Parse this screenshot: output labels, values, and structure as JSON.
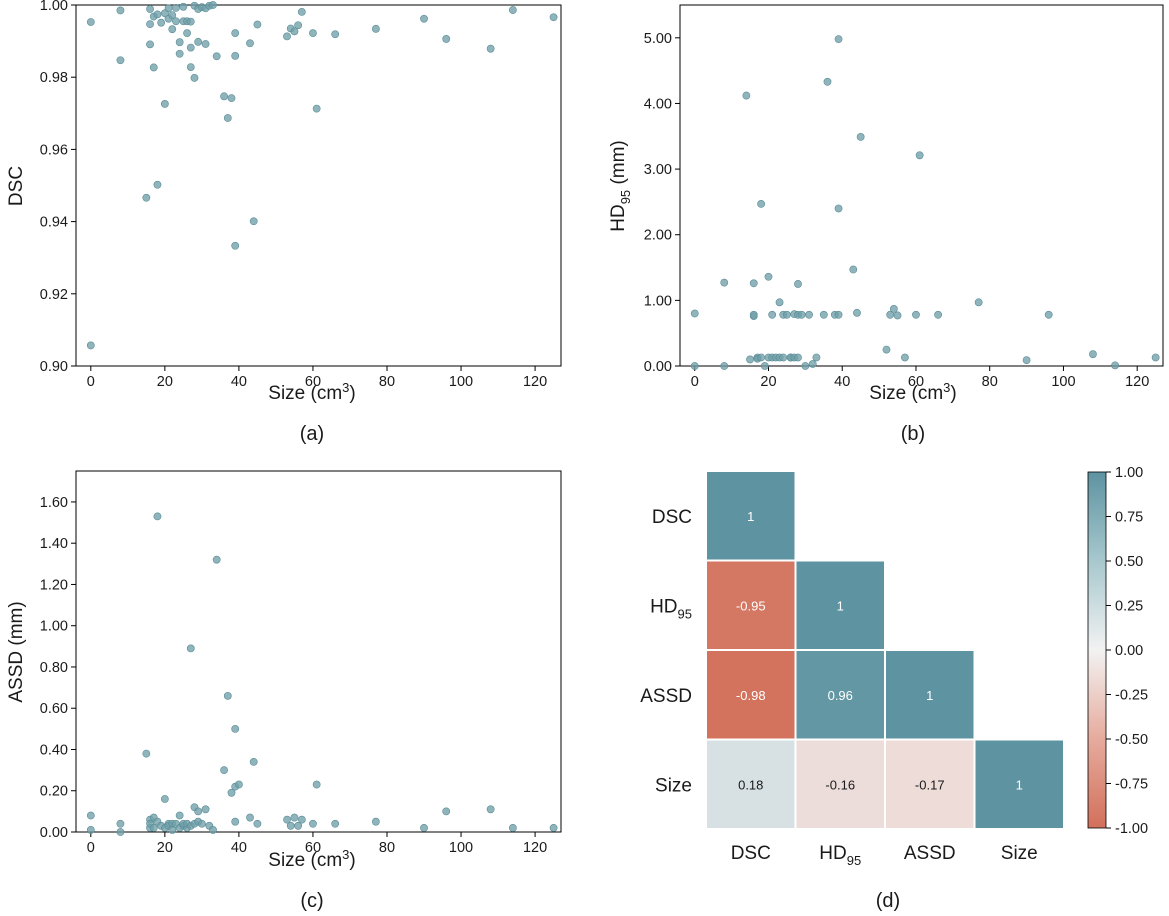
{
  "colors": {
    "point": "#6f9fa8",
    "point_edge": "#5a8c96",
    "axis": "#000000",
    "cmap_neg": "#d2705b",
    "cmap_mid": "#f2f2f2",
    "cmap_pos": "#5e93a1"
  },
  "chart_data": [
    {
      "id": "a",
      "type": "scatter",
      "panel_label": "(a)",
      "xlabel": "Size (cm",
      "xlabel_sup": "3",
      "xlabel_end": ")",
      "ylabel": "DSC",
      "xlim": [
        -4,
        127
      ],
      "ylim": [
        0.9,
        1.0
      ],
      "xticks": [
        0,
        20,
        40,
        60,
        80,
        100,
        120
      ],
      "xtick_labels": [
        "0",
        "20",
        "40",
        "60",
        "80",
        "100",
        "120"
      ],
      "yticks": [
        0.9,
        0.92,
        0.94,
        0.96,
        0.98,
        1.0
      ],
      "ytick_labels": [
        "0.90",
        "0.92",
        "0.94",
        "0.96",
        "0.98",
        "1.00"
      ],
      "x": [
        0,
        0,
        8,
        8,
        15,
        16,
        16,
        16,
        17,
        17,
        18,
        18,
        19,
        20,
        20,
        21,
        21,
        22,
        22,
        23,
        23,
        24,
        24,
        25,
        25,
        26,
        26,
        27,
        27,
        27,
        28,
        28,
        29,
        29,
        30,
        31,
        31,
        32,
        33,
        34,
        36,
        37,
        38,
        39,
        39,
        39,
        43,
        44,
        45,
        53,
        54,
        55,
        56,
        57,
        60,
        61,
        66,
        77,
        90,
        96,
        108,
        114,
        125
      ],
      "y": [
        0.9953,
        0.9057,
        0.9985,
        0.9847,
        0.9466,
        0.9947,
        0.9989,
        0.9891,
        0.9827,
        0.9968,
        0.9502,
        0.9974,
        0.9951,
        0.9726,
        0.9977,
        0.9962,
        0.9991,
        0.9972,
        0.9933,
        0.9992,
        0.9955,
        0.9897,
        0.9865,
        0.9955,
        0.9995,
        0.9955,
        0.9922,
        0.9954,
        0.9828,
        0.9882,
        0.9998,
        0.9798,
        0.9898,
        0.9989,
        0.9994,
        0.9991,
        0.9892,
        0.9998,
        1.0,
        0.9858,
        0.9747,
        0.9687,
        0.9742,
        0.9922,
        0.9859,
        0.9333,
        0.9894,
        0.9401,
        0.9946,
        0.9913,
        0.9935,
        0.9927,
        0.9944,
        0.9981,
        0.9922,
        0.9713,
        0.9919,
        0.9934,
        0.9962,
        0.9906,
        0.9879,
        0.9986,
        0.9966
      ]
    },
    {
      "id": "b",
      "type": "scatter",
      "panel_label": "(b)",
      "xlabel": "Size (cm",
      "xlabel_sup": "3",
      "xlabel_end": ")",
      "ylabel": "HD",
      "ylabel_sub": "95",
      "ylabel_end": " (mm)",
      "xlim": [
        -4,
        127
      ],
      "ylim": [
        0,
        5.5
      ],
      "xticks": [
        0,
        20,
        40,
        60,
        80,
        100,
        120
      ],
      "xtick_labels": [
        "0",
        "20",
        "40",
        "60",
        "80",
        "100",
        "120"
      ],
      "yticks": [
        0,
        1,
        2,
        3,
        4,
        5
      ],
      "ytick_labels": [
        "0.00",
        "1.00",
        "2.00",
        "3.00",
        "4.00",
        "5.00"
      ],
      "x": [
        0,
        0,
        8,
        8,
        14,
        15,
        16,
        16,
        16,
        17,
        17,
        18,
        18,
        19,
        20,
        20,
        21,
        21,
        22,
        23,
        23,
        24,
        24,
        25,
        26,
        26,
        27,
        27,
        28,
        28,
        28,
        29,
        30,
        31,
        32,
        33,
        35,
        36,
        38,
        39,
        39,
        39,
        43,
        44,
        45,
        52,
        53,
        54,
        55,
        57,
        60,
        61,
        66,
        77,
        90,
        96,
        108,
        114,
        125
      ],
      "y": [
        0.0,
        0.8,
        1.27,
        0.0,
        4.12,
        0.1,
        0.76,
        1.26,
        0.78,
        0.13,
        0.11,
        2.47,
        0.13,
        0.0,
        1.36,
        0.13,
        0.13,
        0.78,
        0.13,
        0.13,
        0.97,
        0.13,
        0.78,
        0.78,
        0.13,
        0.13,
        0.13,
        0.79,
        1.25,
        0.13,
        0.78,
        0.78,
        0.0,
        0.78,
        0.03,
        0.13,
        0.78,
        4.33,
        0.78,
        2.4,
        4.98,
        0.78,
        1.47,
        0.81,
        3.49,
        0.25,
        0.78,
        0.87,
        0.77,
        0.13,
        0.78,
        3.21,
        0.78,
        0.97,
        0.09,
        0.78,
        0.18,
        0.01,
        0.13
      ]
    },
    {
      "id": "c",
      "type": "scatter",
      "panel_label": "(c)",
      "xlabel": "Size (cm",
      "xlabel_sup": "3",
      "xlabel_end": ")",
      "ylabel": "ASSD (mm)",
      "xlim": [
        -4,
        127
      ],
      "ylim": [
        0,
        1.75
      ],
      "xticks": [
        0,
        20,
        40,
        60,
        80,
        100,
        120
      ],
      "xtick_labels": [
        "0",
        "20",
        "40",
        "60",
        "80",
        "100",
        "120"
      ],
      "yticks": [
        0,
        0.2,
        0.4,
        0.6,
        0.8,
        1.0,
        1.2,
        1.4,
        1.6
      ],
      "ytick_labels": [
        "0.00",
        "0.20",
        "0.40",
        "0.60",
        "0.80",
        "1.00",
        "1.20",
        "1.40",
        "1.60"
      ],
      "x": [
        0,
        0,
        8,
        8,
        15,
        16,
        16,
        16,
        17,
        17,
        18,
        18,
        19,
        20,
        20,
        21,
        21,
        22,
        22,
        23,
        24,
        24,
        25,
        25,
        26,
        26,
        27,
        27,
        28,
        28,
        29,
        29,
        30,
        31,
        32,
        33,
        34,
        36,
        37,
        38,
        39,
        39,
        39,
        40,
        43,
        44,
        45,
        53,
        54,
        55,
        56,
        57,
        60,
        61,
        66,
        77,
        90,
        96,
        108,
        114,
        125
      ],
      "y": [
        0.01,
        0.08,
        0.04,
        0.0,
        0.38,
        0.06,
        0.02,
        0.04,
        0.07,
        0.02,
        1.53,
        0.05,
        0.03,
        0.16,
        0.02,
        0.04,
        0.03,
        0.04,
        0.01,
        0.04,
        0.08,
        0.02,
        0.03,
        0.04,
        0.02,
        0.04,
        0.89,
        0.03,
        0.12,
        0.04,
        0.1,
        0.05,
        0.04,
        0.11,
        0.03,
        0.01,
        1.32,
        0.3,
        0.66,
        0.19,
        0.5,
        0.05,
        0.22,
        0.23,
        0.07,
        0.34,
        0.04,
        0.06,
        0.03,
        0.07,
        0.03,
        0.06,
        0.04,
        0.23,
        0.04,
        0.05,
        0.02,
        0.1,
        0.11,
        0.02,
        0.02
      ]
    },
    {
      "id": "d",
      "type": "heatmap",
      "panel_label": "(d)",
      "row_labels": [
        {
          "text": "DSC",
          "sub": ""
        },
        {
          "text": "HD",
          "sub": "95"
        },
        {
          "text": "ASSD",
          "sub": ""
        },
        {
          "text": "Size",
          "sub": ""
        }
      ],
      "col_labels": [
        {
          "text": "DSC",
          "sub": ""
        },
        {
          "text": "HD",
          "sub": "95"
        },
        {
          "text": "ASSD",
          "sub": ""
        },
        {
          "text": "Size",
          "sub": ""
        }
      ],
      "matrix": [
        [
          1.0,
          null,
          null,
          null
        ],
        [
          -0.95,
          1.0,
          null,
          null
        ],
        [
          -0.98,
          0.96,
          1.0,
          null
        ],
        [
          0.18,
          -0.16,
          -0.17,
          1.0
        ]
      ],
      "cell_labels": [
        [
          "1",
          "",
          "",
          ""
        ],
        [
          "-0.95",
          "1",
          "",
          ""
        ],
        [
          "-0.98",
          "0.96",
          "1",
          ""
        ],
        [
          "0.18",
          "-0.16",
          "-0.17",
          "1"
        ]
      ],
      "colorbar": {
        "vmin": -1.0,
        "vmax": 1.0,
        "ticks": [
          1.0,
          0.75,
          0.5,
          0.25,
          0.0,
          -0.25,
          -0.5,
          -0.75,
          -1.0
        ],
        "tick_labels": [
          "1.00",
          "0.75",
          "0.50",
          "0.25",
          "0.00",
          "-0.25",
          "-0.50",
          "-0.75",
          "-1.00"
        ]
      }
    }
  ]
}
